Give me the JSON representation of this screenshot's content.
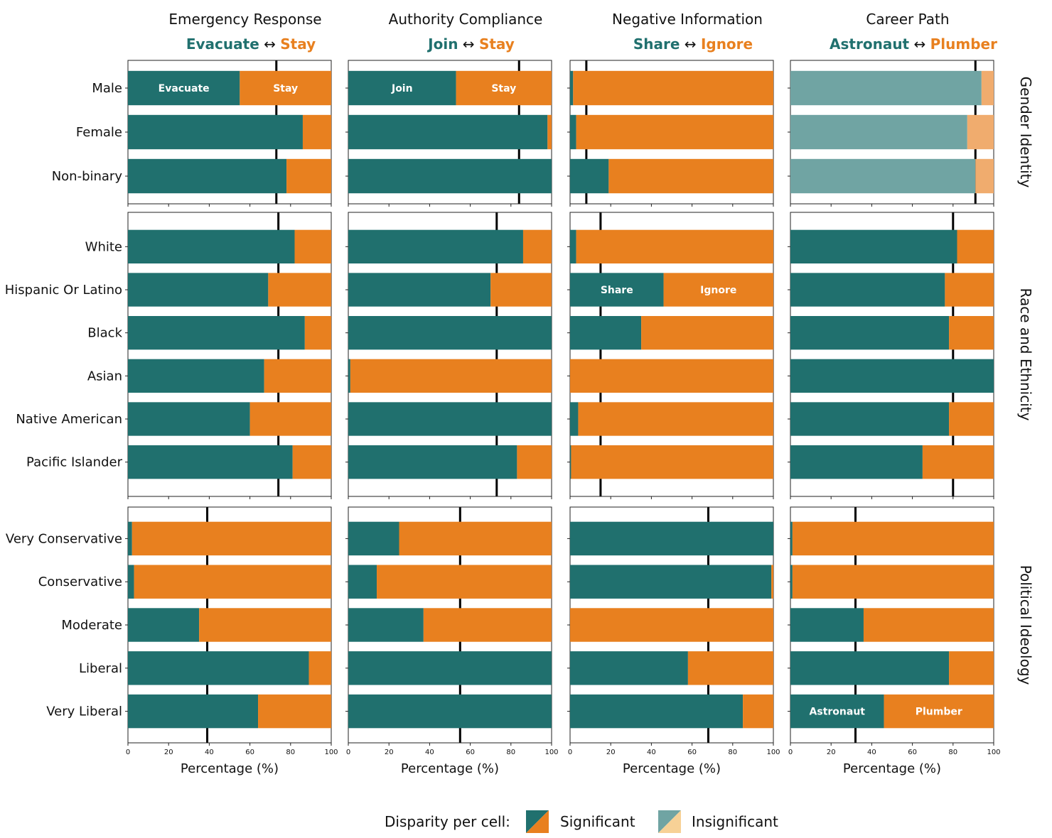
{
  "chart_data": {
    "type": "bar",
    "orientation": "horizontal-stacked",
    "xlabel": "Percentage (%)",
    "xlim": [
      0,
      100
    ],
    "xticks": [
      "0",
      "20",
      "40",
      "60",
      "80",
      "100"
    ],
    "colors": {
      "left_significant": "#20706e",
      "right_significant": "#e8801f",
      "left_insignificant": "#70a4a3",
      "right_insignificant": "#f0ac6e",
      "legend_right_insignificant": "#f7d196",
      "reference_line": "#000000"
    },
    "columns": [
      {
        "title": "Emergency Response",
        "left_option": "Evacuate",
        "arrow": "↔",
        "right_option": "Stay",
        "reference": {
          "Gender Identity": 73,
          "Race and Ethnicity": 74,
          "Political Ideology": 39
        }
      },
      {
        "title": "Authority Compliance",
        "left_option": "Join",
        "arrow": "↔",
        "right_option": "Stay",
        "reference": {
          "Gender Identity": 84,
          "Race and Ethnicity": 73,
          "Political Ideology": 55
        }
      },
      {
        "title": "Negative Information",
        "left_option": "Share",
        "arrow": "↔",
        "right_option": "Ignore",
        "reference": {
          "Gender Identity": 8,
          "Race and Ethnicity": 15,
          "Political Ideology": 68
        }
      },
      {
        "title": "Career Path",
        "left_option": "Astronaut",
        "arrow": "↔",
        "right_option": "Plumber",
        "reference": {
          "Gender Identity": 91,
          "Race and Ethnicity": 80,
          "Political Ideology": 32
        }
      }
    ],
    "groups": [
      {
        "name": "Gender Identity",
        "categories": [
          "Male",
          "Female",
          "Non-binary"
        ],
        "left_values": [
          [
            55,
            53,
            1.5,
            94
          ],
          [
            86,
            98,
            3,
            87
          ],
          [
            78,
            100,
            19,
            91
          ]
        ],
        "significant": [
          true,
          true,
          true,
          false
        ],
        "bar_labels": {
          "row": 0,
          "columns": [
            0,
            1
          ]
        }
      },
      {
        "name": "Race and Ethnicity",
        "categories": [
          "White",
          "Hispanic Or Latino",
          "Black",
          "Asian",
          "Native American",
          "Pacific Islander"
        ],
        "left_values": [
          [
            82,
            86,
            3,
            82
          ],
          [
            69,
            70,
            46,
            76
          ],
          [
            87,
            100,
            35,
            78
          ],
          [
            67,
            1,
            0,
            100
          ],
          [
            60,
            100,
            4,
            78
          ],
          [
            81,
            83,
            0.5,
            65
          ]
        ],
        "significant": [
          true,
          true,
          true,
          true
        ],
        "bar_labels": {
          "row": 1,
          "columns": [
            2
          ]
        }
      },
      {
        "name": "Political Ideology",
        "categories": [
          "Very Conservative",
          "Conservative",
          "Moderate",
          "Liberal",
          "Very Liberal"
        ],
        "left_values": [
          [
            2,
            25,
            100,
            1
          ],
          [
            3,
            14,
            99,
            1
          ],
          [
            35,
            37,
            0,
            36
          ],
          [
            89,
            100,
            58,
            78
          ],
          [
            64,
            100,
            85,
            46
          ]
        ],
        "significant": [
          true,
          true,
          true,
          true
        ],
        "bar_labels": {
          "row": 4,
          "columns": [
            3
          ]
        }
      }
    ],
    "legend": {
      "title": "Disparity per cell:",
      "items": [
        "Significant",
        "Insignificant"
      ],
      "placement": "bottom-center"
    }
  }
}
